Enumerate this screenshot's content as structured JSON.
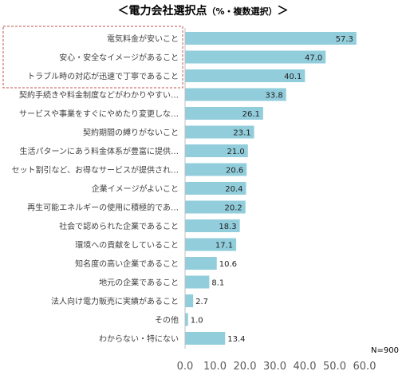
{
  "chart_data": {
    "type": "bar",
    "orientation": "horizontal",
    "title": "＜電力会社選択点",
    "title_suffix": "（%・複数選択）",
    "title_end": "＞",
    "categories": [
      "電気料金が安いこと",
      "安心・安全なイメージがあること",
      "トラブル時の対応が迅速で丁寧であること",
      "契約手続きや料金制度などがわかりやすい…",
      "サービスや事業をすぐにやめたり変更しな…",
      "契約期間の縛りがないこと",
      "生活パターンにあう料金体系が豊富に提供…",
      "セット割引など、お得なサービスが提供され…",
      "企業イメージがよいこと",
      "再生可能エネルギーの使用に積極的であ…",
      "社会で認められた企業であること",
      "環境への貢献をしていること",
      "知名度の高い企業であること",
      "地元の企業であること",
      "法人向け電力販売に実績があること",
      "その他",
      "わからない・特にない"
    ],
    "values": [
      57.3,
      47.0,
      40.1,
      33.8,
      26.1,
      23.1,
      21.0,
      20.6,
      20.4,
      20.2,
      18.3,
      17.1,
      10.6,
      8.1,
      2.7,
      1.0,
      13.4
    ],
    "value_labels": [
      "57.3",
      "47.0",
      "40.1",
      "33.8",
      "26.1",
      "23.1",
      "21.0",
      "20.6",
      "20.4",
      "20.2",
      "18.3",
      "17.1",
      "10.6",
      "8.1",
      "2.7",
      "1.0",
      "13.4"
    ],
    "xlim": [
      0,
      60
    ],
    "ticks": [
      "0.0",
      "10.0",
      "20.0",
      "30.0",
      "40.0",
      "50.0",
      "60.0"
    ],
    "tick_values": [
      0,
      10,
      20,
      30,
      40,
      50,
      60
    ],
    "note": "N=900",
    "highlighted_count": 3,
    "grid": false,
    "bar_color": "#92cddc",
    "highlight_border_color": "#c0504d"
  }
}
